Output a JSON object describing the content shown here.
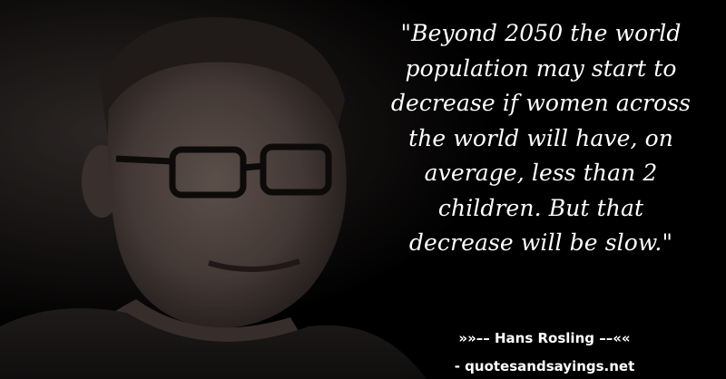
{
  "quote": {
    "lines": [
      "\"Beyond 2050 the world",
      "population may start to",
      "decrease if women across",
      "the world will have, on",
      "average, less than 2",
      "children. But that",
      "decrease will be slow.\""
    ]
  },
  "attribution": {
    "text": "»»–– Hans Rosling ––««"
  },
  "website": {
    "text": "- quotesandsayings.net"
  },
  "colors": {
    "background": "#000000",
    "text": "#ffffff"
  }
}
